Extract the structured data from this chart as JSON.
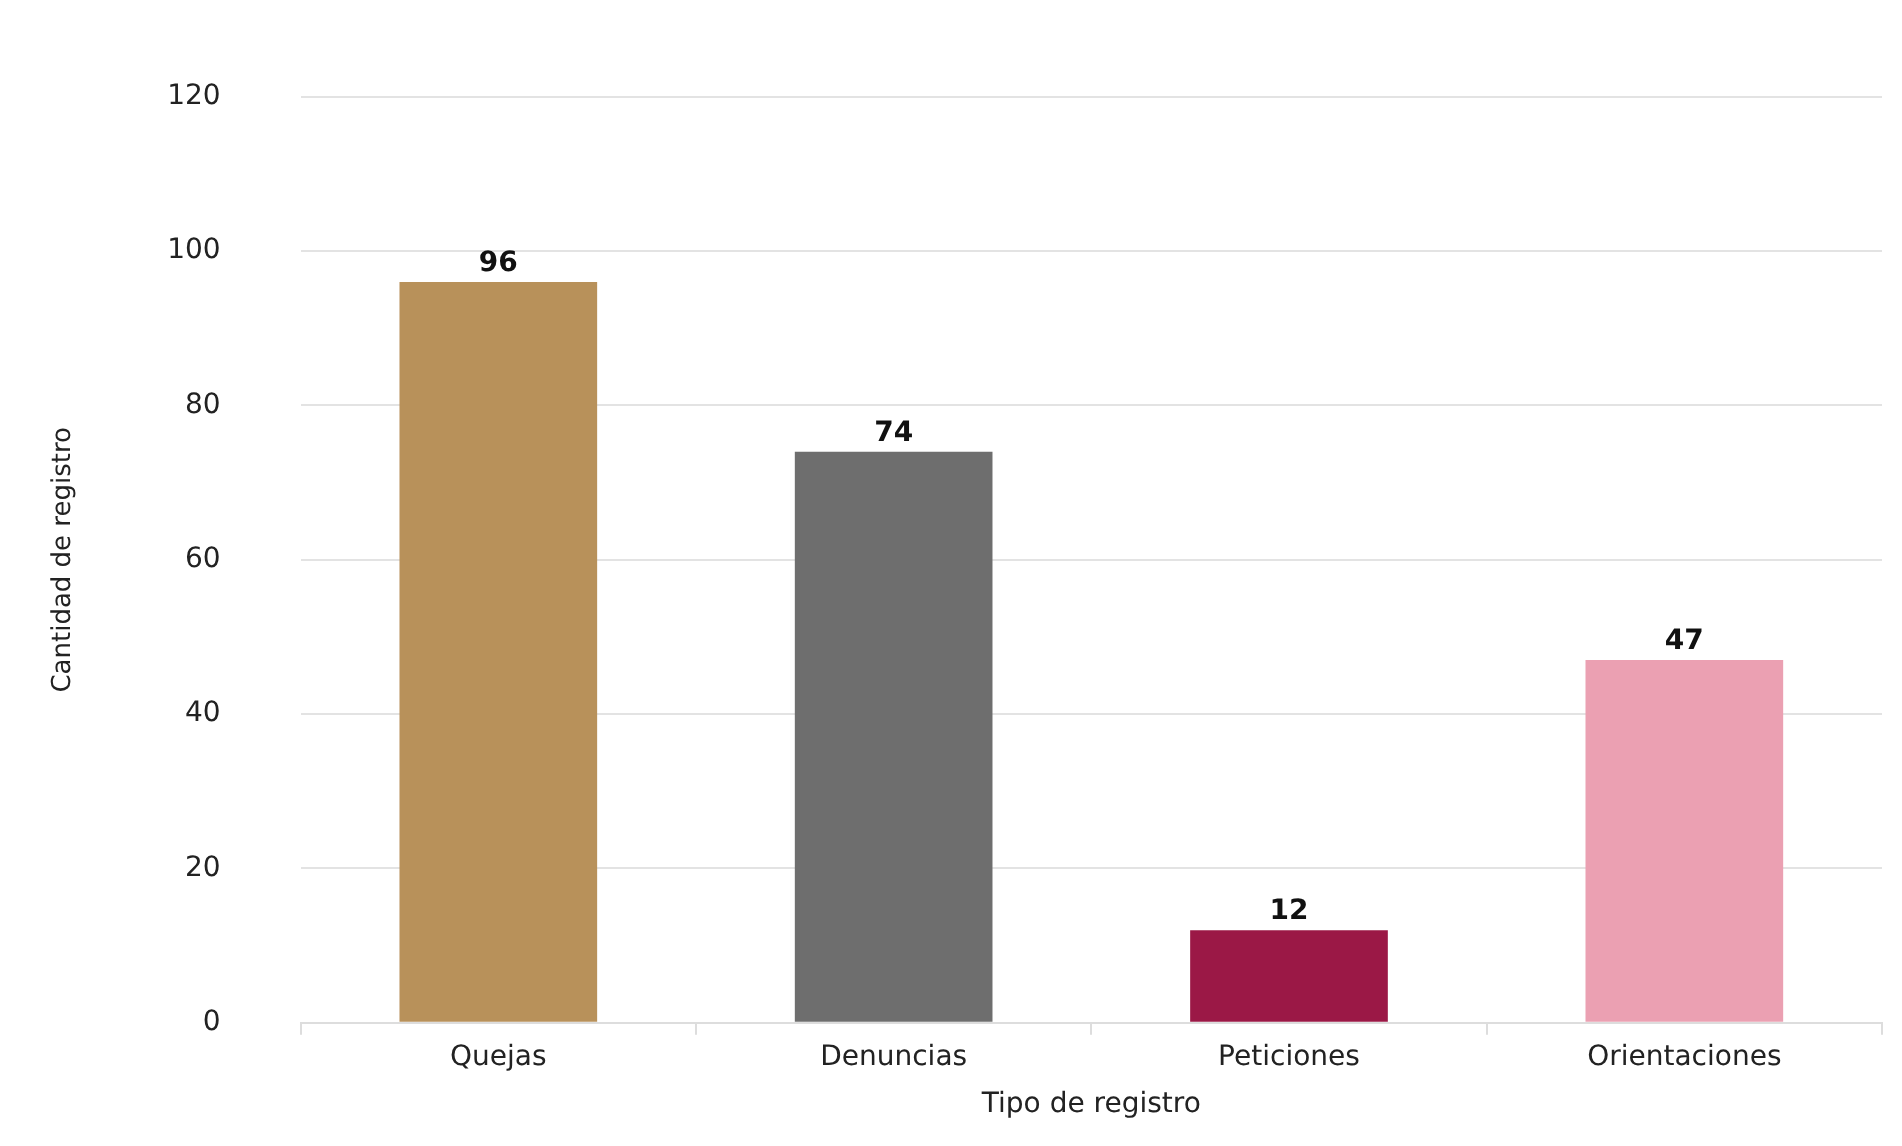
{
  "chart_data": {
    "type": "bar",
    "xlabel": "Tipo de registro",
    "ylabel": "Cantidad de registro",
    "categories": [
      "Quejas",
      "Denuncias",
      "Peticiones",
      "Orientaciones"
    ],
    "values": [
      96,
      74,
      12,
      47
    ],
    "colors": [
      "#b8915a",
      "#6e6e6e",
      "#9b1846",
      "#eba0b2"
    ],
    "ylim": [
      0,
      120
    ],
    "yticks": [
      0,
      20,
      40,
      60,
      80,
      100,
      120
    ],
    "grid": "y",
    "data_labels": true,
    "legend": false
  }
}
